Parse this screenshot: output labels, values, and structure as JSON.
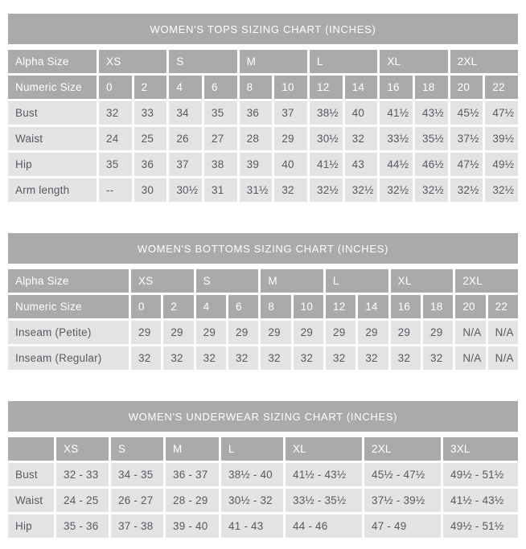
{
  "colors": {
    "header_bg": "#a9aaac",
    "header_text": "#ffffff",
    "cell_bg": "#e2e3e4",
    "cell_text": "#585a5e",
    "page_bg": "#ffffff"
  },
  "tables": [
    {
      "title": "WOMEN'S TOPS SIZING CHART (INCHES)",
      "alpha_label": "Alpha Size",
      "alpha_sizes": [
        "XS",
        "S",
        "M",
        "L",
        "XL",
        "2XL"
      ],
      "numeric_label": "Numeric Size",
      "numeric_sizes": [
        "0",
        "2",
        "4",
        "6",
        "8",
        "10",
        "12",
        "14",
        "16",
        "18",
        "20",
        "22"
      ],
      "rows": [
        {
          "label": "Bust",
          "values": [
            "32",
            "33",
            "34",
            "35",
            "36",
            "37",
            "38½",
            "40",
            "41½",
            "43½",
            "45½",
            "47½"
          ]
        },
        {
          "label": "Waist",
          "values": [
            "24",
            "25",
            "26",
            "27",
            "28",
            "29",
            "30½",
            "32",
            "33½",
            "35½",
            "37½",
            "39½"
          ]
        },
        {
          "label": "Hip",
          "values": [
            "35",
            "36",
            "37",
            "38",
            "39",
            "40",
            "41½",
            "43",
            "44½",
            "46½",
            "47½",
            "49½"
          ]
        },
        {
          "label": "Arm length",
          "values": [
            "--",
            "30",
            "30½",
            "31",
            "31½",
            "32",
            "32½",
            "32½",
            "32½",
            "32½",
            "32½",
            "32½"
          ]
        }
      ]
    },
    {
      "title": "WOMEN'S BOTTOMS SIZING CHART (INCHES)",
      "alpha_label": "Alpha Size",
      "alpha_sizes": [
        "XS",
        "S",
        "M",
        "L",
        "XL",
        "2XL"
      ],
      "numeric_label": "Numeric Size",
      "numeric_sizes": [
        "0",
        "2",
        "4",
        "6",
        "8",
        "10",
        "12",
        "14",
        "16",
        "18",
        "20",
        "22"
      ],
      "rows": [
        {
          "label": "Inseam (Petite)",
          "values": [
            "29",
            "29",
            "29",
            "29",
            "29",
            "29",
            "29",
            "29",
            "29",
            "29",
            "N/A",
            "N/A"
          ]
        },
        {
          "label": "Inseam (Regular)",
          "values": [
            "32",
            "32",
            "32",
            "32",
            "32",
            "32",
            "32",
            "32",
            "32",
            "32",
            "N/A",
            "N/A"
          ]
        }
      ]
    },
    {
      "title": "WOMEN'S UNDERWEAR SIZING CHART (INCHES)",
      "header_sizes": [
        "",
        "XS",
        "S",
        "M",
        "L",
        "XL",
        "2XL",
        "3XL"
      ],
      "rows": [
        {
          "label": "Bust",
          "values": [
            "32 - 33",
            "34 - 35",
            "36 - 37",
            "38½ - 40",
            "41½ - 43½",
            "45½ - 47½",
            "49½ - 51½"
          ]
        },
        {
          "label": "Waist",
          "values": [
            "24 - 25",
            "26 - 27",
            "28 - 29",
            "30½ - 32",
            "33½ - 35½",
            "37½ - 39½",
            "41½ - 43½"
          ]
        },
        {
          "label": "Hip",
          "values": [
            "35 - 36",
            "37 - 38",
            "39 - 40",
            "41 - 43",
            "44 - 46",
            "47 - 49",
            "49½ - 51½"
          ]
        }
      ]
    }
  ]
}
